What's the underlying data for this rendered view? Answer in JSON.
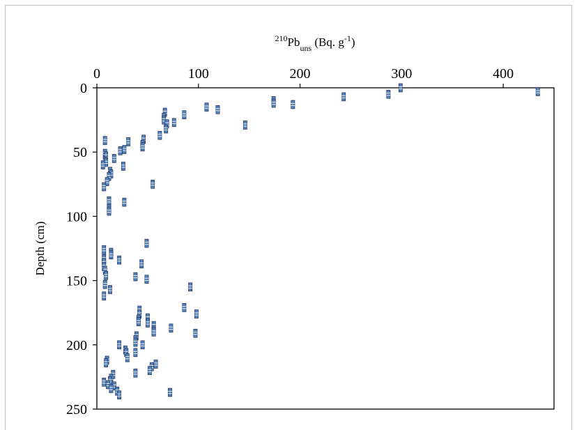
{
  "chart_data": {
    "type": "scatter",
    "xlabel": {
      "base": "Pb",
      "pre_sup": "210",
      "sub": "uns",
      "unit_prefix": " (Bq. g",
      "unit_sup": "-1",
      "unit_suffix": ")"
    },
    "ylabel": "Depth (cm)",
    "x_axis_position": "top",
    "y_inverted": true,
    "xlim": [
      0,
      450
    ],
    "ylim": [
      0,
      250
    ],
    "x_ticks": [
      0,
      100,
      200,
      300,
      400
    ],
    "y_ticks": [
      0,
      50,
      100,
      150,
      200,
      250
    ],
    "grid": false,
    "legend": "none",
    "marker_color": "#4f81bd",
    "marker_edge_color": "#1f1f3f",
    "series": [
      {
        "points": [
          [
            299,
            0
          ],
          [
            434,
            3
          ],
          [
            287,
            5
          ],
          [
            243,
            7
          ],
          [
            174,
            10
          ],
          [
            174,
            12
          ],
          [
            193,
            13
          ],
          [
            108,
            15
          ],
          [
            119,
            17
          ],
          [
            67,
            19
          ],
          [
            86,
            21
          ],
          [
            66,
            23
          ],
          [
            66,
            25
          ],
          [
            76,
            27
          ],
          [
            69,
            28
          ],
          [
            146,
            29
          ],
          [
            68,
            32
          ],
          [
            62,
            37
          ],
          [
            46,
            40
          ],
          [
            31,
            42
          ],
          [
            45,
            44
          ],
          [
            45,
            46
          ],
          [
            27,
            48
          ],
          [
            23,
            49
          ],
          [
            8,
            41
          ],
          [
            8,
            51
          ],
          [
            9,
            53
          ],
          [
            17,
            55
          ],
          [
            8,
            57
          ],
          [
            9,
            58
          ],
          [
            6,
            60
          ],
          [
            26,
            61
          ],
          [
            13,
            65
          ],
          [
            14,
            67
          ],
          [
            12,
            69
          ],
          [
            10,
            73
          ],
          [
            55,
            75
          ],
          [
            7,
            77
          ],
          [
            12,
            88
          ],
          [
            27,
            89
          ],
          [
            12,
            94
          ],
          [
            12,
            96
          ],
          [
            49,
            121
          ],
          [
            7,
            126
          ],
          [
            14,
            128
          ],
          [
            14,
            130
          ],
          [
            7,
            133
          ],
          [
            22,
            134
          ],
          [
            7,
            136
          ],
          [
            44,
            137
          ],
          [
            7,
            139
          ],
          [
            8,
            142
          ],
          [
            9,
            146
          ],
          [
            38,
            147
          ],
          [
            49,
            149
          ],
          [
            8,
            153
          ],
          [
            92,
            155
          ],
          [
            13,
            157
          ],
          [
            7,
            162
          ],
          [
            86,
            171
          ],
          [
            42,
            173
          ],
          [
            42,
            176
          ],
          [
            98,
            176
          ],
          [
            50,
            179
          ],
          [
            41,
            180
          ],
          [
            41,
            182
          ],
          [
            50,
            183
          ],
          [
            56,
            185
          ],
          [
            56,
            189
          ],
          [
            73,
            187
          ],
          [
            56,
            190
          ],
          [
            97,
            191
          ],
          [
            39,
            193
          ],
          [
            38,
            196
          ],
          [
            38,
            198
          ],
          [
            45,
            200
          ],
          [
            22,
            200
          ],
          [
            28,
            204
          ],
          [
            29,
            206
          ],
          [
            38,
            206
          ],
          [
            30,
            210
          ],
          [
            10,
            212
          ],
          [
            9,
            214
          ],
          [
            58,
            215
          ],
          [
            54,
            217
          ],
          [
            52,
            220
          ],
          [
            38,
            222
          ],
          [
            16,
            223
          ],
          [
            14,
            226
          ],
          [
            13,
            228
          ],
          [
            7,
            229
          ],
          [
            11,
            231
          ],
          [
            17,
            232
          ],
          [
            14,
            234
          ],
          [
            20,
            236
          ],
          [
            72,
            237
          ],
          [
            22,
            239
          ]
        ]
      }
    ]
  }
}
